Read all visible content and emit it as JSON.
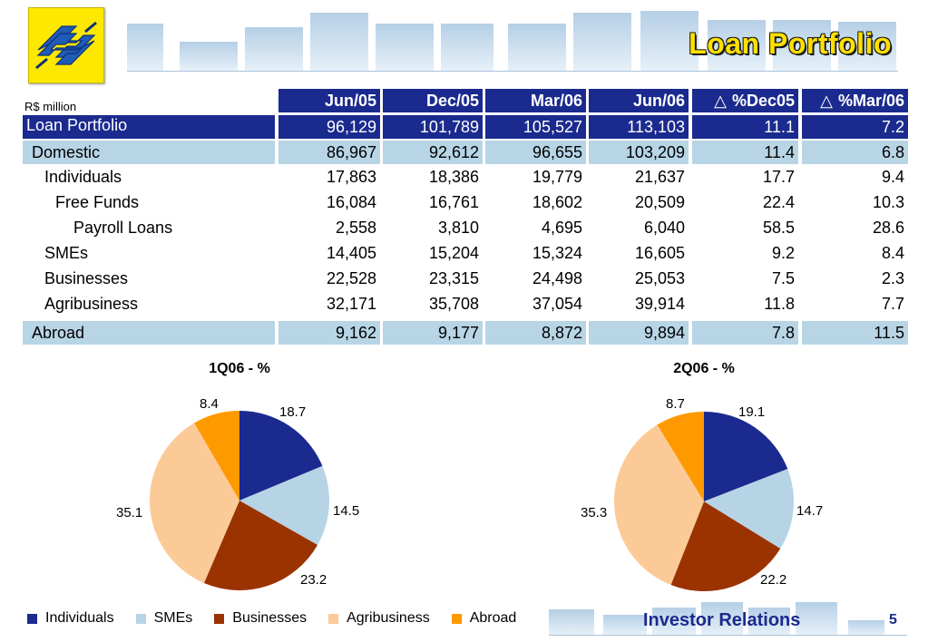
{
  "header": {
    "title": "Loan Portfolio",
    "unit": "R$ million"
  },
  "table": {
    "columns": [
      "Jun/05",
      "Dec/05",
      "Mar/06",
      "Jun/06",
      "%Dec05",
      "%Mar/06"
    ],
    "delta_symbol": "△",
    "rows": [
      {
        "label": "Loan Portfolio",
        "style": "dark",
        "values": [
          "96,129",
          "101,789",
          "105,527",
          "113,103",
          "11.1",
          "7.2"
        ]
      },
      {
        "label": "Domestic",
        "style": "light",
        "values": [
          "86,967",
          "92,612",
          "96,655",
          "103,209",
          "11.4",
          "6.8"
        ]
      },
      {
        "label": "Individuals",
        "style": "plain",
        "values": [
          "17,863",
          "18,386",
          "19,779",
          "21,637",
          "17.7",
          "9.4"
        ]
      },
      {
        "label": "Free Funds",
        "style": "plain",
        "values": [
          "16,084",
          "16,761",
          "18,602",
          "20,509",
          "22.4",
          "10.3"
        ]
      },
      {
        "label": "Payroll Loans",
        "style": "plain",
        "values": [
          "2,558",
          "3,810",
          "4,695",
          "6,040",
          "58.5",
          "28.6"
        ]
      },
      {
        "label": "SMEs",
        "style": "plain",
        "values": [
          "14,405",
          "15,204",
          "15,324",
          "16,605",
          "9.2",
          "8.4"
        ]
      },
      {
        "label": "Businesses",
        "style": "plain",
        "values": [
          "22,528",
          "23,315",
          "24,498",
          "25,053",
          "7.5",
          "2.3"
        ]
      },
      {
        "label": "Agribusiness",
        "style": "plain",
        "values": [
          "32,171",
          "35,708",
          "37,054",
          "39,914",
          "11.8",
          "7.7"
        ]
      },
      {
        "label": "Abroad",
        "style": "light",
        "values": [
          "9,162",
          "9,177",
          "8,872",
          "9,894",
          "7.8",
          "11.5"
        ]
      }
    ]
  },
  "chart_data": [
    {
      "type": "pie",
      "title": "1Q06 - %",
      "categories": [
        "Individuals",
        "SMEs",
        "Businesses",
        "Agribusiness",
        "Abroad"
      ],
      "values": [
        18.7,
        14.5,
        23.2,
        35.1,
        8.4
      ],
      "labels": [
        "18.7",
        "14.5",
        "23.2",
        "35.1",
        "8.4"
      ],
      "legend": "bottom"
    },
    {
      "type": "pie",
      "title": "2Q06 - %",
      "categories": [
        "Individuals",
        "SMEs",
        "Businesses",
        "Agribusiness",
        "Abroad"
      ],
      "values": [
        19.1,
        14.7,
        22.2,
        35.3,
        8.7
      ],
      "labels": [
        "19.1",
        "14.7",
        "22.2",
        "35.3",
        "8.7"
      ],
      "legend": "bottom"
    }
  ],
  "legend": [
    {
      "label": "Individuals",
      "color": "#1b2a8e"
    },
    {
      "label": "SMEs",
      "color": "#b6d4e6"
    },
    {
      "label": "Businesses",
      "color": "#9a3300"
    },
    {
      "label": "Agribusiness",
      "color": "#fcca96"
    },
    {
      "label": "Abroad",
      "color": "#ff9900"
    }
  ],
  "footer": {
    "text": "Investor Relations",
    "page": "5"
  }
}
